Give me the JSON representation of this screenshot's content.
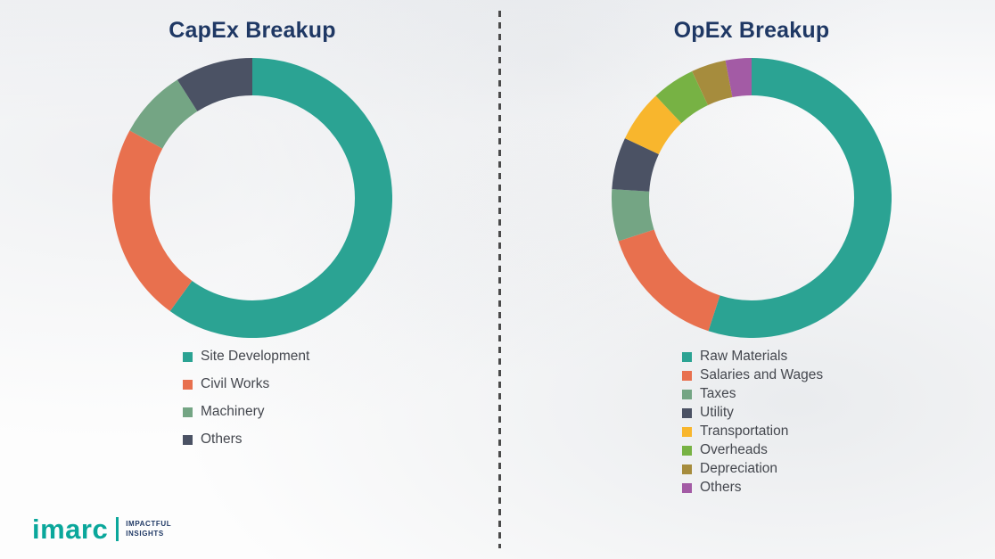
{
  "page": {
    "background": "#fdfdfd"
  },
  "divider": {
    "color": "#4a4a4a",
    "style": "dashed"
  },
  "logo": {
    "brand": "imarc",
    "tagline_line1": "IMPACTFUL",
    "tagline_line2": "INSIGHTS",
    "brand_color": "#0AA79B",
    "tagline_color": "#1F3864"
  },
  "chart_data": [
    {
      "type": "pie",
      "subtype": "donut",
      "title": "CapEx Breakup",
      "title_color": "#1F3864",
      "legend_position": "bottom-left",
      "segments": [
        {
          "label": "Site Development",
          "value": 60,
          "color": "#2BA393"
        },
        {
          "label": "Civil Works",
          "value": 23,
          "color": "#E8704E"
        },
        {
          "label": "Machinery",
          "value": 8,
          "color": "#74A584"
        },
        {
          "label": "Others",
          "value": 9,
          "color": "#4B5264"
        }
      ]
    },
    {
      "type": "pie",
      "subtype": "donut",
      "title": "OpEx Breakup",
      "title_color": "#1F3864",
      "legend_position": "bottom-left",
      "segments": [
        {
          "label": "Raw Materials",
          "value": 55,
          "color": "#2BA393"
        },
        {
          "label": "Salaries and Wages",
          "value": 15,
          "color": "#E8704E"
        },
        {
          "label": "Taxes",
          "value": 6,
          "color": "#74A584"
        },
        {
          "label": "Utility",
          "value": 6,
          "color": "#4B5264"
        },
        {
          "label": "Transportation",
          "value": 6,
          "color": "#F8B62D"
        },
        {
          "label": "Overheads",
          "value": 5,
          "color": "#77B244"
        },
        {
          "label": "Depreciation",
          "value": 4,
          "color": "#A68C3D"
        },
        {
          "label": "Others",
          "value": 3,
          "color": "#A35BA5"
        }
      ]
    }
  ]
}
